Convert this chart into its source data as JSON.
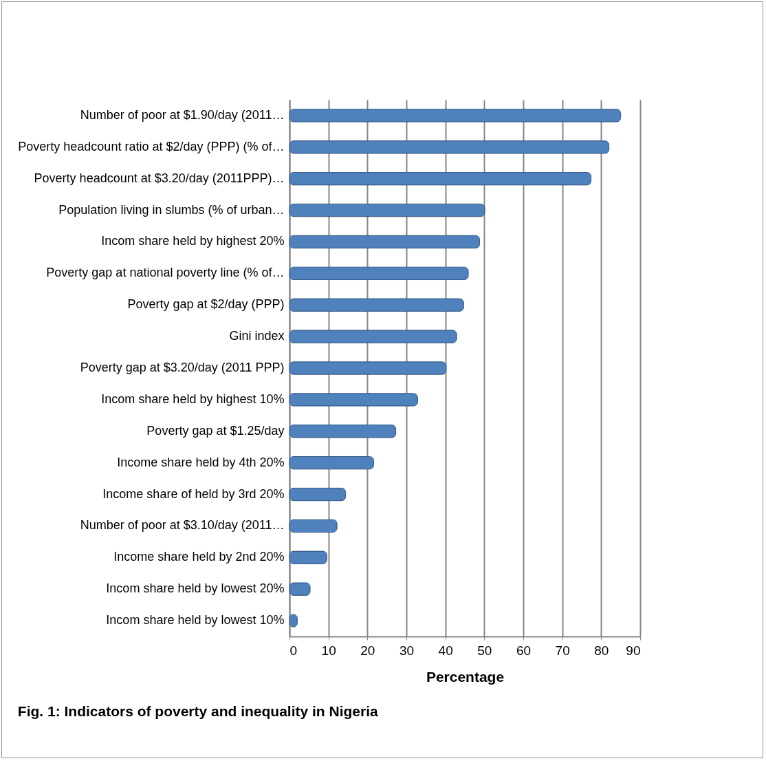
{
  "chart_data": {
    "type": "bar",
    "orientation": "horizontal",
    "categories": [
      "Number of poor at $1.90/day (2011…",
      "Poverty headcount ratio at $2/day (PPP) (% of…",
      "Poverty headcount at $3.20/day (2011PPP)…",
      "Population living in slumbs (% of urban…",
      "Incom share held by highest 20%",
      "Poverty gap at national poverty line (% of…",
      "Poverty  gap at $2/day (PPP)",
      "Gini index",
      "Poverty gap at $3.20/day (2011 PPP)",
      "Incom share held by highest 10%",
      "Poverty gap at $1.25/day",
      "Income share held by 4th 20%",
      "Income share of held by 3rd 20%",
      "Number of poor at $3.10/day (2011…",
      "Income share held by 2nd 20%",
      "Incom share held by lowest 20%",
      "Incom share held by lowest 10%"
    ],
    "values": [
      85,
      82,
      77.4,
      50.1,
      48.8,
      45.9,
      44.7,
      42.9,
      40.2,
      32.9,
      27.3,
      21.6,
      14.4,
      12.2,
      9.6,
      5.3,
      2
    ],
    "color": "#4f81bd",
    "xlim": [
      0,
      90
    ],
    "xticks": [
      0,
      10,
      20,
      30,
      40,
      50,
      60,
      70,
      80,
      90
    ],
    "grid": "x",
    "xlabel": "Percentage",
    "annotations": [
      "Fig. 1: Indicators of poverty and inequality in Nigeria"
    ]
  }
}
